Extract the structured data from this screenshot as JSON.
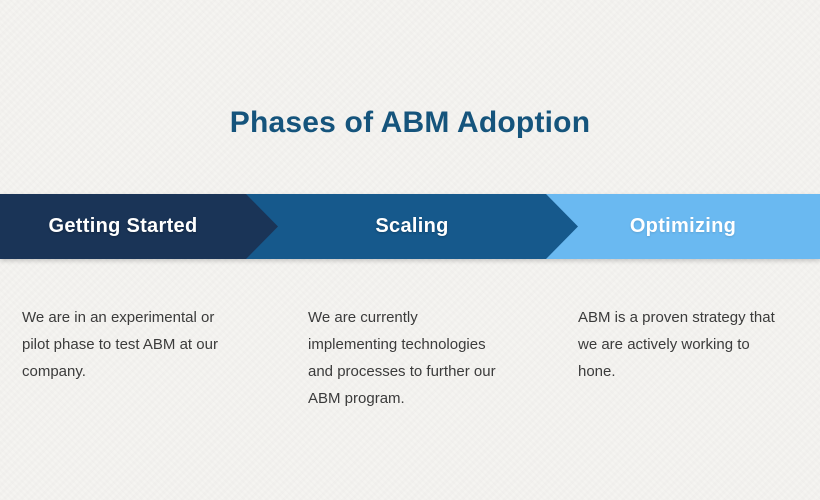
{
  "title": "Phases of ABM Adoption",
  "phases": [
    {
      "label": "Getting Started",
      "description": "We are in an experimental or pilot phase to test ABM at our company.",
      "color": "#1a3457"
    },
    {
      "label": "Scaling",
      "description": "We are currently implementing technologies and processes to further our ABM program.",
      "color": "#16598c"
    },
    {
      "label": "Optimizing",
      "description": "ABM is a proven strategy that we are actively working to hone.",
      "color": "#6ab9f1"
    }
  ],
  "colors": {
    "background": "#f5f4f1",
    "title_text": "#15547c",
    "band_label_text": "#ffffff",
    "description_text": "#3b3b3b"
  }
}
